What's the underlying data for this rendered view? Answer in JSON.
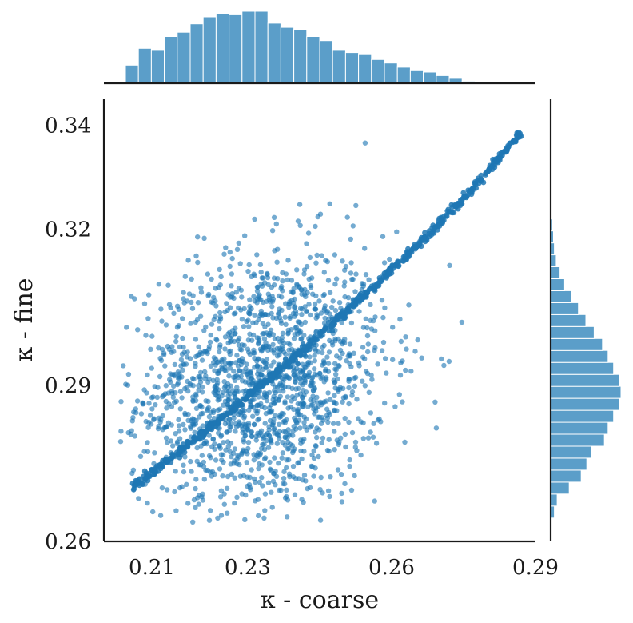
{
  "colors": {
    "points": "#1f77b4",
    "hist": "#5b9ec9",
    "hist_edge": "#ffffff",
    "axis": "#1a1a1a"
  },
  "chart_data": {
    "type": "scatter",
    "title": "",
    "xlabel": "κ - coarse",
    "ylabel": "κ - fine",
    "xlim": [
      0.2,
      0.29
    ],
    "ylim": [
      0.26,
      0.345
    ],
    "x_ticks": [
      0.21,
      0.23,
      0.26,
      0.29
    ],
    "y_ticks": [
      0.26,
      0.29,
      0.32,
      0.34
    ],
    "x_tick_labels": [
      "0.21",
      "0.23",
      "0.26",
      "0.29"
    ],
    "y_tick_labels": [
      "0.26",
      "0.29",
      "0.32",
      "0.34"
    ],
    "grid": false,
    "point_count_approx": 2300,
    "series": [
      {
        "values_description_omitted": true,
        "x": [
          0.206,
          0.209,
          0.212,
          0.215,
          0.218,
          0.221,
          0.224,
          0.227,
          0.23,
          0.233,
          0.236,
          0.239,
          0.242,
          0.245,
          0.248,
          0.251,
          0.254,
          0.257,
          0.26,
          0.263,
          0.266,
          0.269,
          0.272,
          0.275,
          0.278,
          0.281,
          0.284,
          0.287
        ],
        "y": [
          0.2705,
          0.2726,
          0.2746,
          0.2767,
          0.2789,
          0.2811,
          0.2833,
          0.2856,
          0.2879,
          0.2901,
          0.2925,
          0.2948,
          0.2972,
          0.2996,
          0.3021,
          0.3046,
          0.3071,
          0.3096,
          0.3122,
          0.3148,
          0.3175,
          0.3203,
          0.3231,
          0.326,
          0.329,
          0.3322,
          0.3354,
          0.3386
        ]
      }
    ],
    "scatter_x_mean": 0.233,
    "scatter_x_sd": 0.013,
    "scatter_y_mean": 0.2905,
    "scatter_y_sd": 0.0125,
    "top_histogram": {
      "bins": [
        0.2045,
        0.2072,
        0.2099,
        0.2126,
        0.2153,
        0.218,
        0.2207,
        0.2234,
        0.2261,
        0.2288,
        0.2315,
        0.2342,
        0.2369,
        0.2396,
        0.2423,
        0.245,
        0.2477,
        0.2504,
        0.2531,
        0.2558,
        0.2585,
        0.2612,
        0.2639,
        0.2666,
        0.2693,
        0.272,
        0.2747,
        0.2774
      ],
      "counts": [
        26,
        50,
        47,
        67,
        73,
        85,
        95,
        99,
        98,
        103,
        103,
        86,
        80,
        77,
        67,
        61,
        47,
        44,
        41,
        34,
        29,
        23,
        18,
        16,
        11,
        7,
        3,
        1
      ]
    },
    "right_histogram": {
      "bins": [
        0.2645,
        0.2668,
        0.2691,
        0.2714,
        0.2737,
        0.276,
        0.2783,
        0.2806,
        0.2829,
        0.2852,
        0.2875,
        0.2898,
        0.2921,
        0.2944,
        0.2967,
        0.299,
        0.3013,
        0.3036,
        0.3059,
        0.3082,
        0.3105,
        0.3128,
        0.3151,
        0.3174,
        0.3197,
        0.322
      ],
      "counts": [
        4,
        7,
        20,
        33,
        39,
        44,
        58,
        62,
        68,
        74,
        76,
        74,
        68,
        62,
        56,
        47,
        38,
        30,
        22,
        15,
        10,
        6,
        4,
        3,
        2,
        1
      ]
    }
  }
}
